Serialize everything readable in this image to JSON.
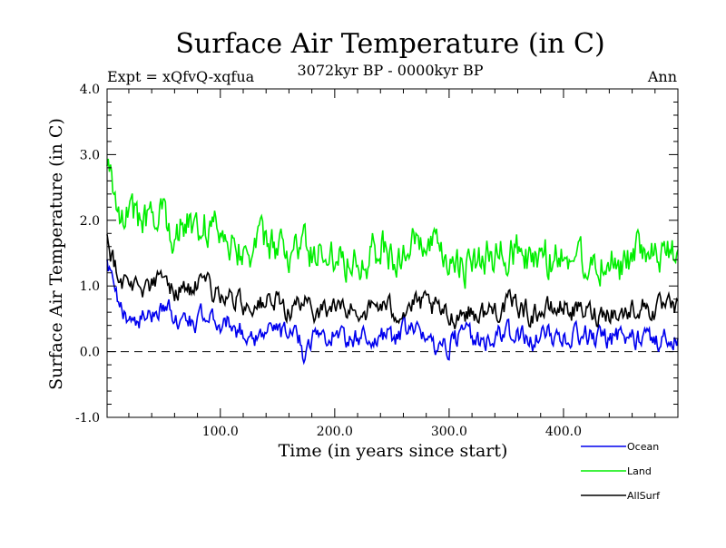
{
  "colors": {
    "ocean": "#0000ee",
    "land": "#00ee00",
    "allsurf": "#000000",
    "axis": "#000000",
    "zero_line": "#000000"
  },
  "chart_data": {
    "type": "line",
    "title": "Surface Air Temperature (in C)",
    "subtitle": "3072kyr BP - 0000kyr BP",
    "expt_label": "Expt = xQfvQ-xqfua",
    "season_label": "Ann",
    "xlabel": "Time (in years since start)",
    "ylabel": "Surface Air Temperature (in C)",
    "xlim": [
      1,
      500
    ],
    "ylim": [
      -1.0,
      4.0
    ],
    "xticks": [
      100,
      200,
      300,
      400
    ],
    "xtick_labels": [
      "100.0",
      "200.0",
      "300.0",
      "400.0"
    ],
    "yticks": [
      -1,
      0,
      1,
      2,
      3,
      4
    ],
    "ytick_labels": [
      "-1.0",
      "0.0",
      "1.0",
      "2.0",
      "3.0",
      "4.0"
    ],
    "reference_line": {
      "y": 0.0,
      "style": "dashed"
    },
    "series": [
      {
        "name": "Ocean",
        "color": "#0000ee",
        "x": [
          1,
          5,
          10,
          15,
          20,
          30,
          40,
          50,
          60,
          70,
          80,
          90,
          100,
          110,
          120,
          130,
          140,
          150,
          160,
          170,
          172,
          180,
          190,
          200,
          210,
          220,
          230,
          240,
          250,
          260,
          270,
          280,
          290,
          300,
          310,
          320,
          330,
          340,
          350,
          360,
          370,
          380,
          390,
          400,
          410,
          420,
          430,
          440,
          450,
          460,
          470,
          480,
          490,
          500
        ],
        "y": [
          1.3,
          1.05,
          0.72,
          0.6,
          0.55,
          0.5,
          0.55,
          0.72,
          0.52,
          0.45,
          0.5,
          0.5,
          0.45,
          0.4,
          0.28,
          0.26,
          0.3,
          0.32,
          0.22,
          0.2,
          0.0,
          0.22,
          0.26,
          0.28,
          0.22,
          0.18,
          0.25,
          0.2,
          0.22,
          0.3,
          0.28,
          0.2,
          0.12,
          0.12,
          0.25,
          0.2,
          0.18,
          0.22,
          0.28,
          0.22,
          0.15,
          0.22,
          0.25,
          0.28,
          0.22,
          0.25,
          0.2,
          0.18,
          0.25,
          0.2,
          0.25,
          0.18,
          0.2,
          0.2
        ]
      },
      {
        "name": "Land",
        "color": "#00ee00",
        "x": [
          1,
          5,
          10,
          15,
          20,
          30,
          40,
          50,
          60,
          70,
          80,
          90,
          100,
          110,
          120,
          130,
          140,
          150,
          160,
          170,
          180,
          190,
          200,
          210,
          220,
          230,
          240,
          250,
          260,
          270,
          280,
          290,
          300,
          310,
          320,
          330,
          340,
          350,
          360,
          370,
          380,
          390,
          400,
          410,
          420,
          430,
          440,
          450,
          460,
          470,
          480,
          490,
          500
        ],
        "y": [
          3.0,
          2.55,
          2.3,
          2.15,
          2.1,
          2.0,
          1.95,
          2.05,
          1.85,
          1.9,
          2.0,
          1.9,
          1.85,
          1.75,
          1.55,
          1.6,
          1.6,
          1.55,
          1.45,
          1.6,
          1.5,
          1.45,
          1.55,
          1.45,
          1.5,
          1.45,
          1.6,
          1.45,
          1.45,
          1.6,
          1.6,
          1.45,
          1.2,
          1.4,
          1.3,
          1.35,
          1.45,
          1.5,
          1.6,
          1.35,
          1.45,
          1.4,
          1.55,
          1.45,
          1.4,
          1.35,
          1.45,
          1.3,
          1.45,
          1.5,
          1.4,
          1.45,
          1.4
        ]
      },
      {
        "name": "AllSurf",
        "color": "#000000",
        "x": [
          1,
          5,
          10,
          15,
          20,
          30,
          40,
          50,
          60,
          70,
          80,
          90,
          100,
          110,
          120,
          130,
          140,
          150,
          160,
          170,
          180,
          190,
          200,
          210,
          220,
          230,
          240,
          250,
          260,
          270,
          280,
          290,
          300,
          310,
          320,
          330,
          340,
          350,
          360,
          370,
          380,
          390,
          400,
          410,
          420,
          430,
          440,
          450,
          460,
          470,
          480,
          490,
          500
        ],
        "y": [
          1.8,
          1.5,
          1.2,
          1.1,
          1.05,
          0.98,
          1.0,
          1.1,
          0.95,
          0.95,
          0.98,
          0.95,
          0.88,
          0.82,
          0.72,
          0.72,
          0.75,
          0.72,
          0.65,
          0.72,
          0.65,
          0.65,
          0.68,
          0.62,
          0.65,
          0.62,
          0.72,
          0.62,
          0.65,
          0.72,
          0.7,
          0.62,
          0.5,
          0.62,
          0.6,
          0.58,
          0.65,
          0.7,
          0.72,
          0.58,
          0.62,
          0.62,
          0.7,
          0.62,
          0.6,
          0.58,
          0.65,
          0.55,
          0.65,
          0.7,
          0.62,
          0.65,
          0.6
        ]
      }
    ],
    "legend": {
      "placement": "bottom-right",
      "entries": [
        "Ocean",
        "Land",
        "AllSurf"
      ]
    }
  }
}
